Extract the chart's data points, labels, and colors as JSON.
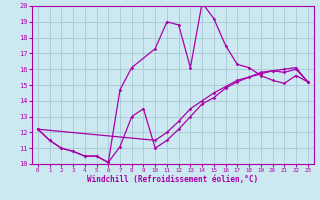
{
  "xlabel": "Windchill (Refroidissement éolien,°C)",
  "bg_color": "#cce8f0",
  "grid_color": "#aaccd8",
  "line_color": "#aa00aa",
  "spine_color": "#aa00aa",
  "xlim": [
    -0.5,
    23.5
  ],
  "ylim": [
    10,
    20
  ],
  "yticks": [
    10,
    11,
    12,
    13,
    14,
    15,
    16,
    17,
    18,
    19,
    20
  ],
  "xticks": [
    0,
    1,
    2,
    3,
    4,
    5,
    6,
    7,
    8,
    9,
    10,
    11,
    12,
    13,
    14,
    15,
    16,
    17,
    18,
    19,
    20,
    21,
    22,
    23
  ],
  "series": [
    {
      "x": [
        0,
        1,
        2,
        3,
        4,
        5,
        6,
        7,
        8,
        10,
        11,
        12,
        13,
        14,
        15,
        16,
        17,
        18,
        19,
        20,
        21,
        22,
        23
      ],
      "y": [
        12.2,
        11.5,
        11.0,
        10.8,
        10.5,
        10.5,
        10.1,
        14.7,
        16.1,
        17.3,
        19.0,
        18.8,
        16.1,
        20.2,
        19.2,
        17.5,
        16.3,
        16.1,
        15.6,
        15.3,
        15.1,
        15.6,
        15.2
      ]
    },
    {
      "x": [
        0,
        1,
        2,
        3,
        4,
        5,
        6,
        7,
        8,
        9,
        10,
        11,
        12,
        13,
        14,
        15,
        16,
        17,
        18,
        19,
        20,
        21,
        22,
        23
      ],
      "y": [
        12.2,
        11.5,
        11.0,
        10.8,
        10.5,
        10.5,
        10.1,
        11.1,
        13.0,
        13.5,
        11.0,
        11.5,
        12.2,
        13.0,
        13.8,
        14.2,
        14.8,
        15.2,
        15.5,
        15.7,
        15.9,
        16.0,
        16.1,
        15.2
      ]
    },
    {
      "x": [
        0,
        10,
        11,
        12,
        13,
        14,
        15,
        16,
        17,
        18,
        19,
        20,
        21,
        22,
        23
      ],
      "y": [
        12.2,
        11.5,
        12.0,
        12.7,
        13.5,
        14.0,
        14.5,
        14.9,
        15.3,
        15.5,
        15.8,
        15.9,
        15.8,
        16.0,
        15.2
      ]
    }
  ]
}
